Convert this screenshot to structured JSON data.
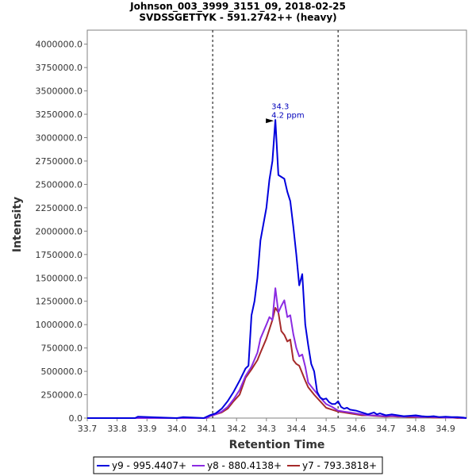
{
  "chart_data": {
    "type": "line",
    "title": "Johnson_003_3999_3151_09, 2018-02-25",
    "subtitle": "SVDSSGETTYK - 591.2742++ (heavy)",
    "xlabel": "Retention Time",
    "ylabel": "Intensity",
    "xlim": [
      33.7,
      34.97
    ],
    "ylim": [
      0,
      4150000
    ],
    "xticks": [
      "33.7",
      "33.8",
      "33.9",
      "34.0",
      "34.1",
      "34.2",
      "34.3",
      "34.4",
      "34.5",
      "34.6",
      "34.7",
      "34.8",
      "34.9"
    ],
    "yticks": [
      "0.0",
      "250000.0",
      "500000.0",
      "750000.0",
      "1000000.0",
      "1250000.0",
      "1500000.0",
      "1750000.0",
      "2000000.0",
      "2250000.0",
      "2500000.0",
      "2750000.0",
      "3000000.0",
      "3250000.0",
      "3500000.0",
      "3750000.0",
      "4000000.0"
    ],
    "grid": false,
    "legend_position": "bottom",
    "integration_boundaries": [
      34.12,
      34.54
    ],
    "peak_annotation": {
      "x": 34.33,
      "y": 3180000,
      "label_rt": "34.3",
      "label_ppm": "4.2 ppm"
    },
    "series": [
      {
        "name": "y9 - 995.4407+",
        "color": "#0000dd",
        "x": [
          33.7,
          33.86,
          33.87,
          34.0,
          34.02,
          34.09,
          34.11,
          34.13,
          34.15,
          34.17,
          34.19,
          34.21,
          34.23,
          34.24,
          34.25,
          34.26,
          34.27,
          34.28,
          34.3,
          34.31,
          34.32,
          34.33,
          34.34,
          34.36,
          34.37,
          34.38,
          34.39,
          34.4,
          34.41,
          34.42,
          34.43,
          34.44,
          34.45,
          34.46,
          34.47,
          34.48,
          34.49,
          34.5,
          34.51,
          34.52,
          34.53,
          34.54,
          34.55,
          34.56,
          34.57,
          34.58,
          34.6,
          34.62,
          34.63,
          34.64,
          34.66,
          34.67,
          34.68,
          34.7,
          34.72,
          34.74,
          34.76,
          34.78,
          34.8,
          34.82,
          34.84,
          34.86,
          34.88,
          34.9,
          34.92,
          34.94,
          34.96,
          34.97
        ],
        "y": [
          0,
          0,
          15000,
          0,
          10000,
          0,
          30000,
          50000,
          100000,
          180000,
          280000,
          400000,
          530000,
          560000,
          1100000,
          1250000,
          1500000,
          1900000,
          2250000,
          2550000,
          2750000,
          3190000,
          2600000,
          2560000,
          2420000,
          2320000,
          2050000,
          1750000,
          1420000,
          1540000,
          1000000,
          780000,
          580000,
          500000,
          280000,
          220000,
          200000,
          210000,
          170000,
          150000,
          150000,
          180000,
          120000,
          100000,
          110000,
          90000,
          80000,
          60000,
          50000,
          40000,
          60000,
          40000,
          50000,
          30000,
          40000,
          30000,
          20000,
          25000,
          30000,
          20000,
          15000,
          20000,
          10000,
          15000,
          10000,
          10000,
          5000,
          0
        ]
      },
      {
        "name": "y8 - 880.4138+",
        "color": "#8b2be2",
        "x": [
          33.7,
          34.1,
          34.11,
          34.13,
          34.15,
          34.17,
          34.19,
          34.21,
          34.23,
          34.25,
          34.27,
          34.28,
          34.3,
          34.31,
          34.32,
          34.33,
          34.34,
          34.35,
          34.36,
          34.37,
          34.38,
          34.39,
          34.4,
          34.41,
          34.42,
          34.43,
          34.44,
          34.46,
          34.48,
          34.5,
          34.52,
          34.54,
          34.56,
          34.58,
          34.6,
          34.62,
          34.64,
          34.66,
          34.68,
          34.7,
          34.72,
          34.74,
          34.76,
          34.78,
          34.8,
          34.82,
          34.84,
          34.86,
          34.88,
          34.9,
          34.92,
          34.94,
          34.96,
          34.97
        ],
        "y": [
          0,
          0,
          20000,
          40000,
          70000,
          120000,
          200000,
          300000,
          450000,
          550000,
          700000,
          850000,
          1000000,
          1080000,
          1050000,
          1390000,
          1130000,
          1200000,
          1260000,
          1080000,
          1100000,
          900000,
          750000,
          660000,
          680000,
          550000,
          380000,
          300000,
          220000,
          150000,
          120000,
          80000,
          70000,
          60000,
          50000,
          40000,
          30000,
          30000,
          25000,
          20000,
          25000,
          20000,
          15000,
          20000,
          15000,
          10000,
          15000,
          10000,
          10000,
          5000,
          5000,
          5000,
          0,
          0
        ]
      },
      {
        "name": "y7 - 793.3818+",
        "color": "#a52a2a",
        "x": [
          33.7,
          34.1,
          34.11,
          34.13,
          34.15,
          34.17,
          34.19,
          34.21,
          34.23,
          34.25,
          34.27,
          34.28,
          34.3,
          34.31,
          34.32,
          34.33,
          34.34,
          34.35,
          34.36,
          34.37,
          34.38,
          34.39,
          34.4,
          34.41,
          34.42,
          34.43,
          34.44,
          34.46,
          34.48,
          34.5,
          34.52,
          34.54,
          34.56,
          34.58,
          34.6,
          34.62,
          34.64,
          34.66,
          34.68,
          34.7,
          34.72,
          34.74,
          34.76,
          34.78,
          34.8,
          34.82,
          34.84,
          34.86,
          34.88,
          34.9,
          34.92,
          34.94,
          34.96,
          34.97
        ],
        "y": [
          0,
          0,
          20000,
          40000,
          60000,
          100000,
          180000,
          250000,
          430000,
          520000,
          620000,
          700000,
          850000,
          950000,
          1050000,
          1180000,
          1130000,
          930000,
          890000,
          820000,
          840000,
          620000,
          580000,
          560000,
          480000,
          400000,
          330000,
          250000,
          180000,
          110000,
          90000,
          70000,
          60000,
          50000,
          40000,
          30000,
          30000,
          25000,
          20000,
          15000,
          20000,
          15000,
          15000,
          10000,
          10000,
          10000,
          10000,
          5000,
          5000,
          5000,
          5000,
          0,
          0,
          0
        ]
      }
    ]
  }
}
